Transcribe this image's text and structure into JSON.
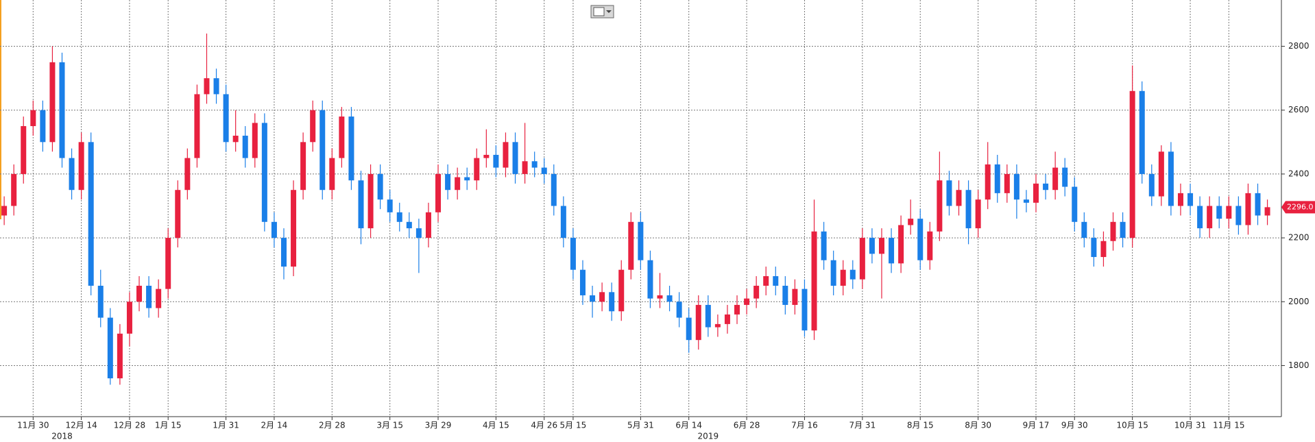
{
  "chart_data": {
    "type": "candlestick",
    "open": [
      2270,
      2300,
      2400,
      2550,
      2600,
      2500,
      2750,
      2450,
      2350,
      2500,
      2050,
      1950,
      1760,
      1900,
      2000,
      2050,
      1980,
      2040,
      2200,
      2350,
      2450,
      2650,
      2700,
      2650,
      2500,
      2520,
      2450,
      2560,
      2250,
      2200,
      2110,
      2350,
      2500,
      2600,
      2350,
      2450,
      2580,
      2380,
      2230,
      2400,
      2320,
      2280,
      2250,
      2230,
      2200,
      2280,
      2400,
      2350,
      2390,
      2380,
      2450,
      2460,
      2420,
      2500,
      2400,
      2440,
      2420,
      2400,
      2300,
      2200,
      2100,
      2020,
      2000,
      2030,
      1970,
      2100,
      2250,
      2130,
      2010,
      2020,
      2000,
      1950,
      1880,
      1990,
      1920,
      1930,
      1960,
      1990,
      2010,
      2050,
      2080,
      2050,
      1990,
      2040,
      1910,
      2220,
      2130,
      2050,
      2100,
      2070,
      2200,
      2150,
      2200,
      2120,
      2240,
      2260,
      2130,
      2220,
      2380,
      2300,
      2350,
      2230,
      2320,
      2430,
      2340,
      2400,
      2320,
      2310,
      2370,
      2350,
      2420,
      2360,
      2250,
      2200,
      2140,
      2190,
      2250,
      2200,
      2660,
      2400,
      2330,
      2470,
      2300,
      2340,
      2300,
      2230,
      2300,
      2260,
      2300,
      2240,
      2340,
      2270
    ],
    "high": [
      2330,
      2430,
      2580,
      2630,
      2630,
      2800,
      2780,
      2480,
      2530,
      2530,
      2100,
      1980,
      1930,
      2030,
      2080,
      2080,
      2070,
      2230,
      2380,
      2480,
      2680,
      2840,
      2730,
      2680,
      2600,
      2550,
      2590,
      2590,
      2280,
      2230,
      2380,
      2530,
      2630,
      2630,
      2480,
      2610,
      2610,
      2410,
      2430,
      2430,
      2350,
      2310,
      2280,
      2260,
      2310,
      2430,
      2430,
      2420,
      2420,
      2480,
      2540,
      2490,
      2530,
      2530,
      2560,
      2470,
      2450,
      2430,
      2330,
      2230,
      2130,
      2050,
      2060,
      2060,
      2130,
      2280,
      2280,
      2160,
      2090,
      2050,
      2030,
      1980,
      2020,
      2020,
      1960,
      1990,
      2020,
      2040,
      2080,
      2110,
      2110,
      2080,
      2070,
      2070,
      2320,
      2250,
      2160,
      2130,
      2130,
      2230,
      2230,
      2230,
      2230,
      2270,
      2320,
      2290,
      2250,
      2470,
      2410,
      2380,
      2380,
      2350,
      2500,
      2460,
      2430,
      2430,
      2350,
      2400,
      2400,
      2470,
      2450,
      2390,
      2280,
      2230,
      2220,
      2280,
      2280,
      2740,
      2690,
      2430,
      2490,
      2500,
      2370,
      2370,
      2330,
      2330,
      2330,
      2330,
      2330,
      2370,
      2370,
      2320
    ],
    "low": [
      2240,
      2270,
      2370,
      2520,
      2470,
      2470,
      2420,
      2320,
      2320,
      2020,
      1920,
      1740,
      1740,
      1860,
      1970,
      1950,
      1950,
      2010,
      2170,
      2320,
      2420,
      2620,
      2620,
      2470,
      2470,
      2420,
      2420,
      2220,
      2170,
      2070,
      2080,
      2320,
      2470,
      2320,
      2320,
      2420,
      2350,
      2180,
      2200,
      2290,
      2250,
      2220,
      2200,
      2090,
      2170,
      2250,
      2320,
      2320,
      2350,
      2350,
      2420,
      2390,
      2390,
      2370,
      2370,
      2390,
      2370,
      2270,
      2170,
      2070,
      1990,
      1950,
      1970,
      1940,
      1940,
      2070,
      2100,
      1980,
      1980,
      1970,
      1920,
      1840,
      1850,
      1890,
      1890,
      1900,
      1930,
      1960,
      1980,
      2020,
      2020,
      1960,
      1960,
      1890,
      1880,
      2100,
      2020,
      2020,
      2040,
      2040,
      2120,
      2010,
      2090,
      2090,
      2210,
      2100,
      2100,
      2190,
      2270,
      2270,
      2180,
      2200,
      2290,
      2310,
      2310,
      2260,
      2280,
      2280,
      2320,
      2320,
      2330,
      2220,
      2170,
      2110,
      2110,
      2160,
      2170,
      2170,
      2370,
      2300,
      2300,
      2270,
      2270,
      2270,
      2200,
      2200,
      2230,
      2230,
      2210,
      2210,
      2240,
      2240
    ],
    "close": [
      2300,
      2400,
      2550,
      2600,
      2500,
      2750,
      2450,
      2350,
      2500,
      2050,
      1950,
      1760,
      1900,
      2000,
      2050,
      1980,
      2040,
      2200,
      2350,
      2450,
      2650,
      2700,
      2650,
      2500,
      2520,
      2450,
      2560,
      2250,
      2200,
      2110,
      2350,
      2500,
      2600,
      2350,
      2450,
      2580,
      2380,
      2230,
      2400,
      2320,
      2280,
      2250,
      2230,
      2200,
      2280,
      2400,
      2350,
      2390,
      2380,
      2450,
      2460,
      2420,
      2500,
      2400,
      2440,
      2420,
      2400,
      2300,
      2200,
      2100,
      2020,
      2000,
      2030,
      1970,
      2100,
      2250,
      2130,
      2010,
      2020,
      2000,
      1950,
      1880,
      1990,
      1920,
      1930,
      1960,
      1990,
      2010,
      2050,
      2080,
      2050,
      1990,
      2040,
      1910,
      2220,
      2130,
      2050,
      2100,
      2070,
      2200,
      2150,
      2200,
      2120,
      2240,
      2260,
      2130,
      2220,
      2380,
      2300,
      2350,
      2230,
      2320,
      2430,
      2340,
      2400,
      2320,
      2310,
      2370,
      2350,
      2420,
      2360,
      2250,
      2200,
      2140,
      2190,
      2250,
      2200,
      2660,
      2400,
      2330,
      2470,
      2300,
      2340,
      2300,
      2230,
      2300,
      2260,
      2300,
      2240,
      2340,
      2270,
      2296
    ],
    "up_color": "#e8213f",
    "down_color": "#1a7fe8",
    "ylim": [
      1640,
      2945
    ],
    "yticks": [
      1800,
      2000,
      2200,
      2400,
      2600,
      2800
    ],
    "xticks": [
      {
        "value": 3,
        "label": "11月 30"
      },
      {
        "value": 8,
        "label": "12月 14"
      },
      {
        "value": 13,
        "label": "12月 28"
      },
      {
        "value": 17,
        "label": "1月 15"
      },
      {
        "value": 23,
        "label": "1月 31"
      },
      {
        "value": 28,
        "label": "2月 14"
      },
      {
        "value": 34,
        "label": "2月 28"
      },
      {
        "value": 40,
        "label": "3月 15"
      },
      {
        "value": 45,
        "label": "3月 29"
      },
      {
        "value": 51,
        "label": "4月 15"
      },
      {
        "value": 56,
        "label": "4月 26"
      },
      {
        "value": 59,
        "label": "5月 15"
      },
      {
        "value": 66,
        "label": "5月 31"
      },
      {
        "value": 71,
        "label": "6月 14"
      },
      {
        "value": 77,
        "label": "6月 28"
      },
      {
        "value": 83,
        "label": "7月 16"
      },
      {
        "value": 89,
        "label": "7月 31"
      },
      {
        "value": 95,
        "label": "8月 15"
      },
      {
        "value": 101,
        "label": "8月 30"
      },
      {
        "value": 107,
        "label": "9月 17"
      },
      {
        "value": 111,
        "label": "9月 30"
      },
      {
        "value": 117,
        "label": "10月 15"
      },
      {
        "value": 123,
        "label": "10月 31"
      },
      {
        "value": 127,
        "label": "11月 15"
      }
    ],
    "year_labels": [
      {
        "value": 6,
        "label": "2018"
      },
      {
        "value": 73,
        "label": "2019"
      }
    ],
    "last_price": {
      "value": 2296,
      "label": "2296.0"
    },
    "grid": true
  }
}
